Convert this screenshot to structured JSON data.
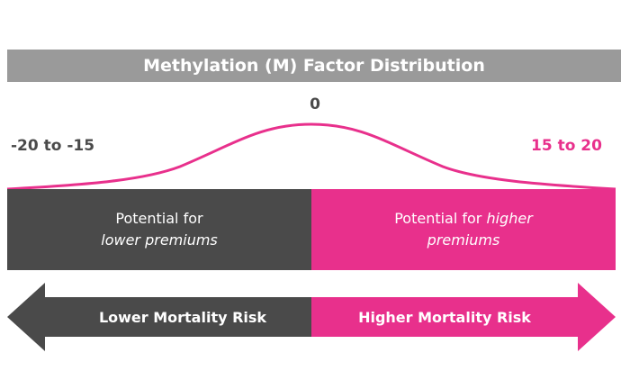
{
  "title": "Methylation (M) Factor Distribution",
  "scale": {
    "center": "0",
    "left": "-20 to -15",
    "right": "15 to 20"
  },
  "blocks": {
    "left": {
      "line1": "Potential for",
      "line2": "lower premiums"
    },
    "right": {
      "line1_plain": "Potential for ",
      "line1_em": "higher",
      "line2": "premiums"
    }
  },
  "arrows": {
    "left": "Lower Mortality Risk",
    "right": "Higher Mortality Risk"
  },
  "colors": {
    "dark": "#4a4a4a",
    "accent": "#e8308c",
    "title_bg": "#9a9a9a"
  }
}
